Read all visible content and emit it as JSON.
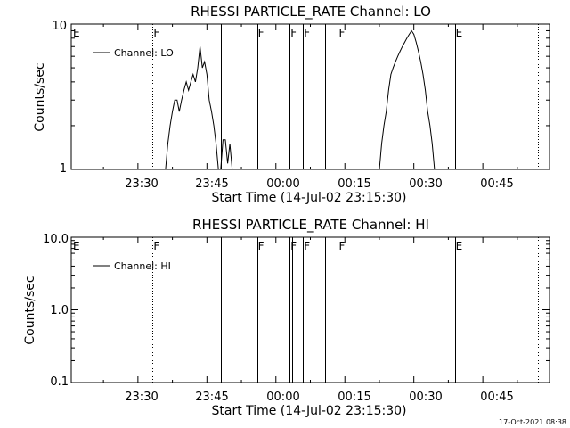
{
  "stamp": "17-Oct-2021 08:38",
  "x_time_tick_labels": [
    "23:30",
    "23:45",
    "00:00",
    "00:15",
    "00:30",
    "00:45"
  ],
  "x_label": "Start Time (14-Jul-02 23:15:30)",
  "y_label": "Counts/sec",
  "chart_data": [
    {
      "type": "line",
      "title": "RHESSI PARTICLE_RATE Channel: LO",
      "xlabel": "Start Time (14-Jul-02 23:15:30)",
      "ylabel": "Counts/sec",
      "y_scale": "log",
      "ylim": [
        1,
        10
      ],
      "y_tick_labels": [
        "10",
        "1"
      ],
      "x_unit": "minutes after 23:15:30 on 14-Jul-02",
      "xlim": [
        0,
        104
      ],
      "x_tick_labels": [
        "23:30",
        "23:45",
        "00:00",
        "00:15",
        "00:30",
        "00:45"
      ],
      "legend": "top-left",
      "series": [
        {
          "name": "Channel: LO",
          "x": [
            20.5,
            21,
            21.5,
            22,
            22.5,
            23,
            23.5,
            24,
            24.5,
            25,
            25.5,
            26,
            26.5,
            27,
            27.5,
            28,
            28.5,
            29,
            29.5,
            30,
            30.5,
            31,
            31.5,
            32,
            32.5,
            33,
            33.5,
            34,
            34.5,
            35,
            67,
            67.5,
            68,
            68.5,
            69,
            69.5,
            70,
            70.5,
            71,
            71.5,
            72,
            72.5,
            73,
            73.5,
            74,
            74.5,
            75,
            75.5,
            76,
            76.5,
            77,
            77.5,
            78,
            78.5,
            79
          ],
          "y": [
            1.0,
            1.5,
            2.0,
            2.5,
            3.0,
            3.0,
            2.5,
            3.0,
            3.5,
            4.0,
            3.5,
            4.0,
            4.5,
            4.0,
            5.0,
            7.0,
            5.0,
            5.5,
            4.5,
            3.0,
            2.5,
            2.0,
            1.5,
            1.0,
            1.0,
            1.6,
            1.6,
            1.1,
            1.5,
            1.0,
            1.0,
            1.5,
            2.0,
            2.5,
            3.5,
            4.5,
            5.0,
            5.5,
            6.0,
            6.5,
            7.0,
            7.5,
            8.0,
            8.5,
            9.0,
            8.5,
            7.5,
            6.5,
            5.5,
            4.5,
            3.5,
            2.5,
            2.0,
            1.5,
            1.0
          ]
        }
      ],
      "annotations": [
        {
          "label": "E",
          "x": 0.2,
          "line": "none"
        },
        {
          "label": "F",
          "x": 17.7,
          "line": "dotted"
        },
        {
          "label": "F",
          "x": 40.4,
          "line": "solid"
        },
        {
          "label": "F",
          "x": 47.5,
          "line": "solid"
        },
        {
          "label": "F",
          "x": 50.4,
          "line": "solid"
        },
        {
          "label": "F",
          "x": 58.0,
          "line": "solid"
        },
        {
          "label": "E",
          "x": 83.4,
          "line": "solid"
        }
      ],
      "vertical_lines": [
        {
          "x": 17.7,
          "style": "dotted"
        },
        {
          "x": 32.6,
          "style": "solid"
        },
        {
          "x": 40.4,
          "style": "solid"
        },
        {
          "x": 47.5,
          "style": "solid"
        },
        {
          "x": 50.4,
          "style": "solid"
        },
        {
          "x": 55.2,
          "style": "solid"
        },
        {
          "x": 57.9,
          "style": "solid"
        },
        {
          "x": 83.4,
          "style": "solid"
        },
        {
          "x": 84.4,
          "style": "dotted"
        },
        {
          "x": 101.5,
          "style": "dotted"
        }
      ]
    },
    {
      "type": "line",
      "title": "RHESSI PARTICLE_RATE Channel: HI",
      "xlabel": "Start Time (14-Jul-02 23:15:30)",
      "ylabel": "Counts/sec",
      "y_scale": "log",
      "ylim": [
        0.1,
        10
      ],
      "y_tick_labels": [
        "10.0",
        "1.0",
        "0.1"
      ],
      "x_unit": "minutes after 23:15:30 on 14-Jul-02",
      "xlim": [
        0,
        104
      ],
      "x_tick_labels": [
        "23:30",
        "23:45",
        "00:00",
        "00:15",
        "00:30",
        "00:45"
      ],
      "legend": "top-left",
      "series": [
        {
          "name": "Channel: HI",
          "x": [],
          "y": []
        }
      ],
      "annotations": [
        {
          "label": "E",
          "x": 0.2,
          "line": "none"
        },
        {
          "label": "F",
          "x": 17.7,
          "line": "dotted"
        },
        {
          "label": "F",
          "x": 40.4,
          "line": "solid"
        },
        {
          "label": "F",
          "x": 47.5,
          "line": "solid"
        },
        {
          "label": "F",
          "x": 50.4,
          "line": "solid"
        },
        {
          "label": "F",
          "x": 58.0,
          "line": "solid"
        },
        {
          "label": "E",
          "x": 83.4,
          "line": "solid"
        }
      ],
      "vertical_lines": [
        {
          "x": 17.7,
          "style": "dotted"
        },
        {
          "x": 32.6,
          "style": "solid"
        },
        {
          "x": 40.4,
          "style": "solid"
        },
        {
          "x": 47.5,
          "style": "solid"
        },
        {
          "x": 48.0,
          "style": "solid"
        },
        {
          "x": 50.4,
          "style": "solid"
        },
        {
          "x": 55.2,
          "style": "solid"
        },
        {
          "x": 57.9,
          "style": "solid"
        },
        {
          "x": 83.4,
          "style": "solid"
        },
        {
          "x": 84.4,
          "style": "dotted"
        },
        {
          "x": 101.5,
          "style": "dotted"
        }
      ]
    }
  ]
}
